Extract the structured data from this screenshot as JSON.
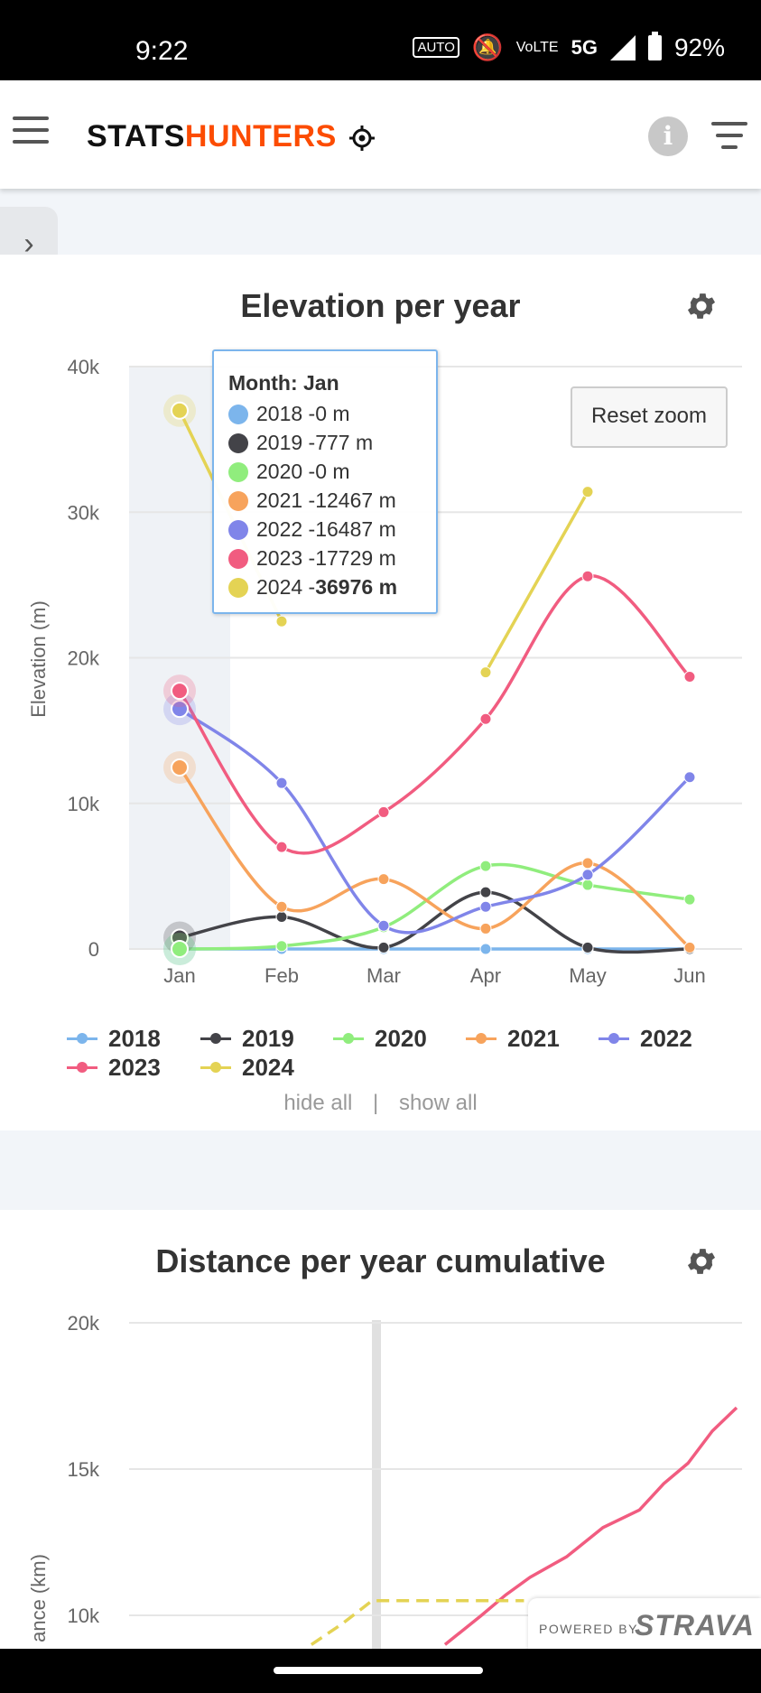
{
  "status": {
    "time": "9:22",
    "icons": [
      "auto-hz-icon",
      "bell-off-icon",
      "volte-icon",
      "5g-icon",
      "signal-icon",
      "battery-icon"
    ],
    "auto_hz": "AUTO",
    "network": "5G",
    "battery": "92%"
  },
  "header": {
    "logo_part1": "STATS",
    "logo_part2": "HUNTERS",
    "info_label": "i",
    "brand_color": "#fc4c02"
  },
  "chart_data": [
    {
      "type": "line",
      "title": "Elevation per year",
      "ylabel": "Elevation (m)",
      "xlabel": "",
      "ylim": [
        0,
        40000
      ],
      "y_ticks": [
        "0",
        "10k",
        "20k",
        "30k",
        "40k"
      ],
      "categories": [
        "Jan",
        "Feb",
        "Mar",
        "Apr",
        "May",
        "Jun"
      ],
      "grid": true,
      "legend_position": "bottom",
      "reset_zoom": "Reset zoom",
      "series": [
        {
          "name": "2018",
          "color": "#7cb5ec",
          "values": [
            0,
            0,
            0,
            0,
            0,
            0
          ]
        },
        {
          "name": "2019",
          "color": "#434348",
          "values": [
            777,
            2200,
            100,
            3900,
            100,
            0
          ]
        },
        {
          "name": "2020",
          "color": "#90ed7d",
          "values": [
            0,
            200,
            1500,
            5700,
            4400,
            3400
          ]
        },
        {
          "name": "2021",
          "color": "#f7a35c",
          "values": [
            12467,
            2900,
            4800,
            1400,
            5900,
            100
          ]
        },
        {
          "name": "2022",
          "color": "#8085e9",
          "values": [
            16487,
            11400,
            1600,
            2900,
            5100,
            11800
          ]
        },
        {
          "name": "2023",
          "color": "#f15c80",
          "values": [
            17729,
            7000,
            9400,
            15800,
            25600,
            18700
          ]
        },
        {
          "name": "2024",
          "color": "#e4d354",
          "values": [
            36976,
            22500,
            null,
            19000,
            31400,
            null
          ]
        }
      ],
      "tooltip": {
        "header": "Month: Jan",
        "rows": [
          {
            "label": "2018 - ",
            "value": "0 m"
          },
          {
            "label": "2019 - ",
            "value": "777 m"
          },
          {
            "label": "2020 - ",
            "value": "0 m"
          },
          {
            "label": "2021 - ",
            "value": "12467 m"
          },
          {
            "label": "2022 - ",
            "value": "16487 m"
          },
          {
            "label": "2023 - ",
            "value": "17729 m"
          },
          {
            "label": "2024 - ",
            "value": "36976 m"
          }
        ]
      },
      "legend_controls": {
        "hide_all": "hide all",
        "separator": "|",
        "show_all": "show all"
      }
    },
    {
      "type": "line",
      "title": "Distance per year cumulative",
      "ylabel": "Distance (km)",
      "ylabel_visible": "ance (km)",
      "y_ticks": [
        "10k",
        "15k",
        "20k"
      ],
      "ylim_visible": [
        9000,
        20000
      ],
      "series": [
        {
          "name": "2023",
          "color": "#f15c80",
          "x_fraction": [
            0.52,
            0.58,
            0.62,
            0.66,
            0.72,
            0.78,
            0.84,
            0.88,
            0.92,
            0.96,
            1.0
          ],
          "values": [
            9000,
            10000,
            10700,
            11300,
            12000,
            13000,
            13600,
            14500,
            15200,
            16300,
            17100
          ]
        },
        {
          "name": "2024",
          "color": "#e4d354",
          "dashed": true,
          "x_fraction": [
            0.3,
            0.35,
            0.4,
            0.45,
            0.55,
            0.65
          ],
          "values": [
            9000,
            9700,
            10500,
            10500,
            10500,
            10500
          ]
        }
      ]
    }
  ],
  "strava": {
    "powered": "POWERED BY",
    "word": "STRAVA"
  }
}
